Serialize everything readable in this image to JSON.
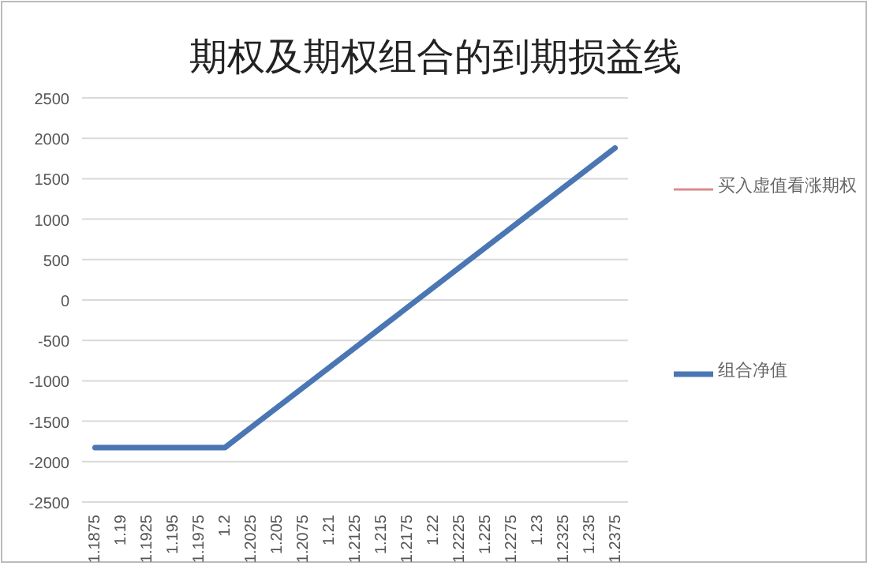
{
  "chart_data": {
    "type": "line",
    "title": "期权及期权组合的到期损益线",
    "categories": [
      "1.1875",
      "1.19",
      "1.1925",
      "1.195",
      "1.1975",
      "1.2",
      "1.2025",
      "1.205",
      "1.2075",
      "1.21",
      "1.2125",
      "1.215",
      "1.2175",
      "1.22",
      "1.2225",
      "1.225",
      "1.2275",
      "1.23",
      "1.2325",
      "1.235",
      "1.2375"
    ],
    "series": [
      {
        "name": "买入虚值看涨期权",
        "color": "#d98c8c",
        "values": [
          null,
          null,
          null,
          null,
          null,
          null,
          null,
          null,
          null,
          null,
          null,
          null,
          null,
          null,
          null,
          null,
          null,
          null,
          null,
          null,
          null
        ]
      },
      {
        "name": "组合净值",
        "color": "#4a76b4",
        "values": [
          -1825,
          -1825,
          -1825,
          -1825,
          -1825,
          -1825,
          -1578,
          -1331,
          -1084,
          -837,
          -590,
          -343,
          -96,
          151,
          398,
          645,
          892,
          1139,
          1386,
          1633,
          1880
        ]
      }
    ],
    "ylim": [
      -2500,
      2500
    ],
    "yticks": [
      -2500,
      -2000,
      -1500,
      -1000,
      -500,
      0,
      500,
      1000,
      1500,
      2000,
      2500
    ],
    "grid": "y",
    "legend": "right",
    "marker": "none",
    "line_style": "solid"
  }
}
